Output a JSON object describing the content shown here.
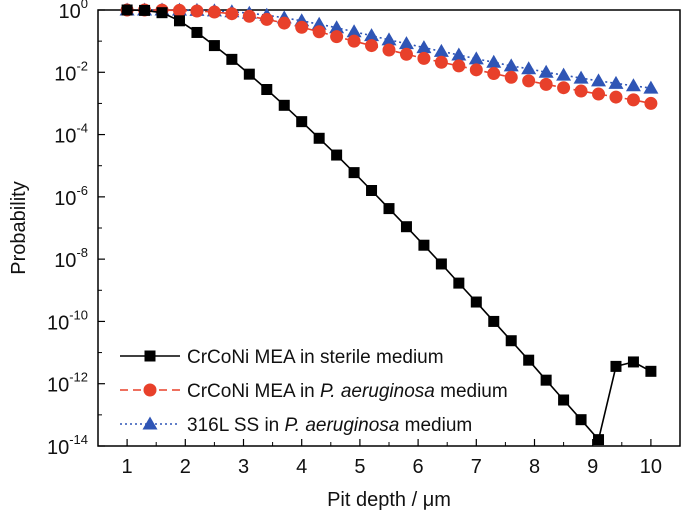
{
  "chart_data": {
    "type": "line",
    "xlabel": "Pit depth / μm",
    "ylabel": "Probability",
    "xlim": [
      0.5,
      10.5
    ],
    "ylim": [
      1e-14,
      1
    ],
    "yscale": "log",
    "grid": false,
    "legend_position": "bottom-left",
    "xticks": [
      "1",
      "2",
      "3",
      "4",
      "5",
      "6",
      "7",
      "8",
      "9",
      "10"
    ],
    "yticks": [
      {
        "base": "10",
        "exp": "0"
      },
      {
        "base": "10",
        "exp": "-2"
      },
      {
        "base": "10",
        "exp": "-4"
      },
      {
        "base": "10",
        "exp": "-6"
      },
      {
        "base": "10",
        "exp": "-8"
      },
      {
        "base": "10",
        "exp": "-10"
      },
      {
        "base": "10",
        "exp": "-12"
      },
      {
        "base": "10",
        "exp": "-14"
      }
    ],
    "series": [
      {
        "name": "CrCoNi MEA in sterile medium",
        "color": "#000000",
        "marker": "square",
        "line_style": "solid",
        "x": [
          1.0,
          1.3,
          1.6,
          1.9,
          2.2,
          2.5,
          2.8,
          3.1,
          3.4,
          3.7,
          4.0,
          4.3,
          4.6,
          4.9,
          5.2,
          5.5,
          5.8,
          6.1,
          6.4,
          6.7,
          7.0,
          7.3,
          7.6,
          7.9,
          8.2,
          8.5,
          8.8,
          9.1,
          9.4,
          9.7,
          10.0
        ],
        "y": [
          1.0,
          0.97,
          0.82,
          0.45,
          0.19,
          0.072,
          0.026,
          0.0087,
          0.0028,
          0.00087,
          0.00026,
          7.6e-05,
          2.2e-05,
          6e-06,
          1.6e-06,
          4.2e-07,
          1.1e-07,
          2.8e-08,
          7e-09,
          1.7e-09,
          4.2e-10,
          1e-10,
          2.4e-11,
          5.7e-12,
          1.3e-12,
          3e-13,
          7e-14,
          1.6e-14,
          3.6e-12,
          5e-12,
          2.5e-12
        ]
      },
      {
        "name": "CrCoNi MEA in P. aeruginosa medium",
        "legend_label": {
          "pre": "CrCoNi MEA in ",
          "italic": "P. aeruginosa",
          "post": " medium"
        },
        "color": "#e8402a",
        "marker": "circle",
        "line_style": "dashed",
        "x": [
          1.0,
          1.3,
          1.6,
          1.9,
          2.2,
          2.5,
          2.8,
          3.1,
          3.4,
          3.7,
          4.0,
          4.3,
          4.6,
          4.9,
          5.2,
          5.5,
          5.8,
          6.1,
          6.4,
          6.7,
          7.0,
          7.3,
          7.6,
          7.9,
          8.2,
          8.5,
          8.8,
          9.1,
          9.4,
          9.7,
          10.0
        ],
        "y": [
          1.0,
          1.0,
          0.99,
          0.97,
          0.93,
          0.86,
          0.76,
          0.63,
          0.5,
          0.38,
          0.28,
          0.2,
          0.14,
          0.1,
          0.072,
          0.052,
          0.038,
          0.028,
          0.021,
          0.016,
          0.012,
          0.0091,
          0.0069,
          0.0053,
          0.0041,
          0.0032,
          0.0025,
          0.002,
          0.0016,
          0.0013,
          0.001
        ]
      },
      {
        "name": "316L SS in P. aeruginosa medium",
        "legend_label": {
          "pre": "316L SS in ",
          "italic": "P. aeruginosa",
          "post": " medium"
        },
        "color": "#2f55b5",
        "marker": "triangle",
        "line_style": "dotted",
        "x": [
          1.0,
          1.3,
          1.6,
          1.9,
          2.2,
          2.5,
          2.8,
          3.1,
          3.4,
          3.7,
          4.0,
          4.3,
          4.6,
          4.9,
          5.2,
          5.5,
          5.8,
          6.1,
          6.4,
          6.7,
          7.0,
          7.3,
          7.6,
          7.9,
          8.2,
          8.5,
          8.8,
          9.1,
          9.4,
          9.7,
          10.0
        ],
        "y": [
          1.0,
          1.0,
          1.0,
          0.99,
          0.97,
          0.94,
          0.88,
          0.79,
          0.68,
          0.56,
          0.45,
          0.35,
          0.27,
          0.2,
          0.15,
          0.11,
          0.083,
          0.062,
          0.047,
          0.036,
          0.027,
          0.021,
          0.016,
          0.013,
          0.01,
          0.0081,
          0.0065,
          0.0053,
          0.0044,
          0.0037,
          0.0031
        ]
      }
    ]
  }
}
